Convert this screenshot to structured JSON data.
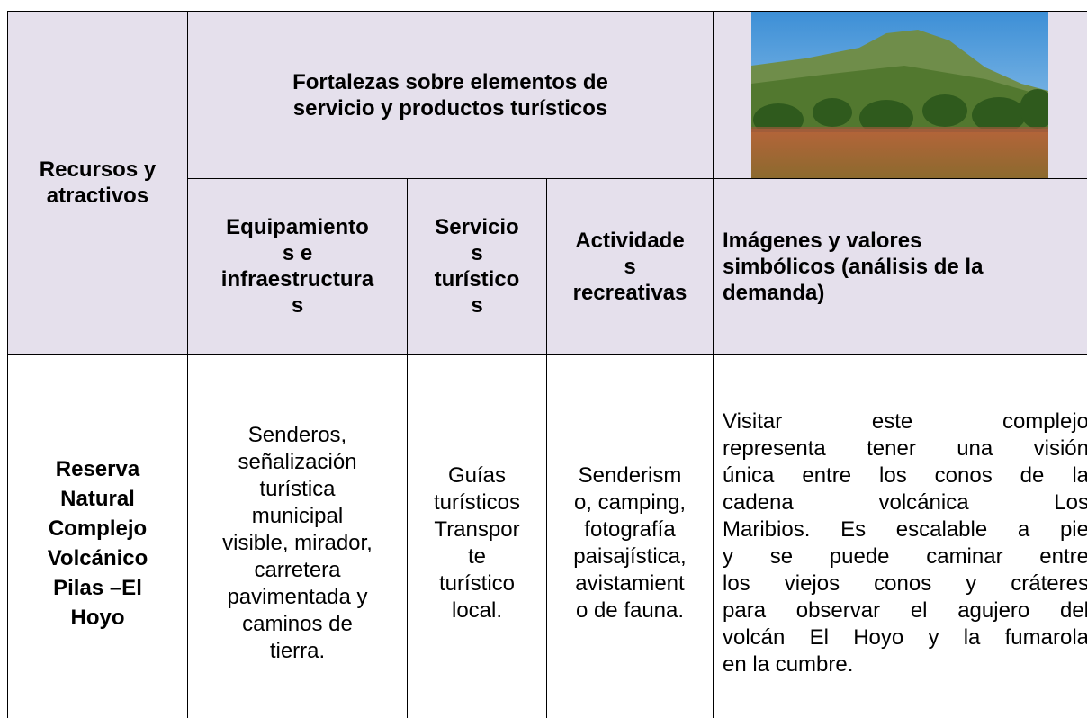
{
  "table": {
    "header": {
      "resources": [
        "Recursos y",
        "atractivos"
      ],
      "strengths": [
        "Fortalezas sobre elementos de",
        "servicio y productos turísticos"
      ],
      "columns": [
        [
          "Equipamiento",
          "s e",
          "infraestructura",
          "s"
        ],
        [
          "Servicio",
          "s",
          "turístico",
          "s"
        ],
        [
          "Actividade",
          "s",
          "recreativas"
        ],
        [
          "Imágenes y valores",
          "simbólicos (análisis de la",
          "demanda)"
        ]
      ]
    },
    "rows": [
      [
        [
          "Reserva",
          "Natural",
          "Complejo",
          "Volcánico",
          "Pilas –El",
          "Hoyo"
        ],
        [
          "Senderos,",
          "señalización",
          "turística",
          "municipal",
          "visible, mirador,",
          "carretera",
          "pavimentada y",
          "caminos de",
          "tierra."
        ],
        [
          "Guías",
          "turísticos",
          "Transpor",
          "te",
          "turístico",
          "local."
        ],
        [
          "Senderism",
          "o, camping,",
          "fotografía",
          "paisajística,",
          "avistamient",
          "o de fauna."
        ],
        [
          "Visitar este complejo",
          "representa tener una visión",
          "única entre los conos de la",
          "cadena volcánica Los",
          "Maribios. Es escalable a pie",
          "y se puede caminar entre",
          "los viejos conos y cráteres",
          "para observar el agujero del",
          "volcán El Hoyo y la fumarola",
          "en la cumbre."
        ]
      ]
    ]
  }
}
